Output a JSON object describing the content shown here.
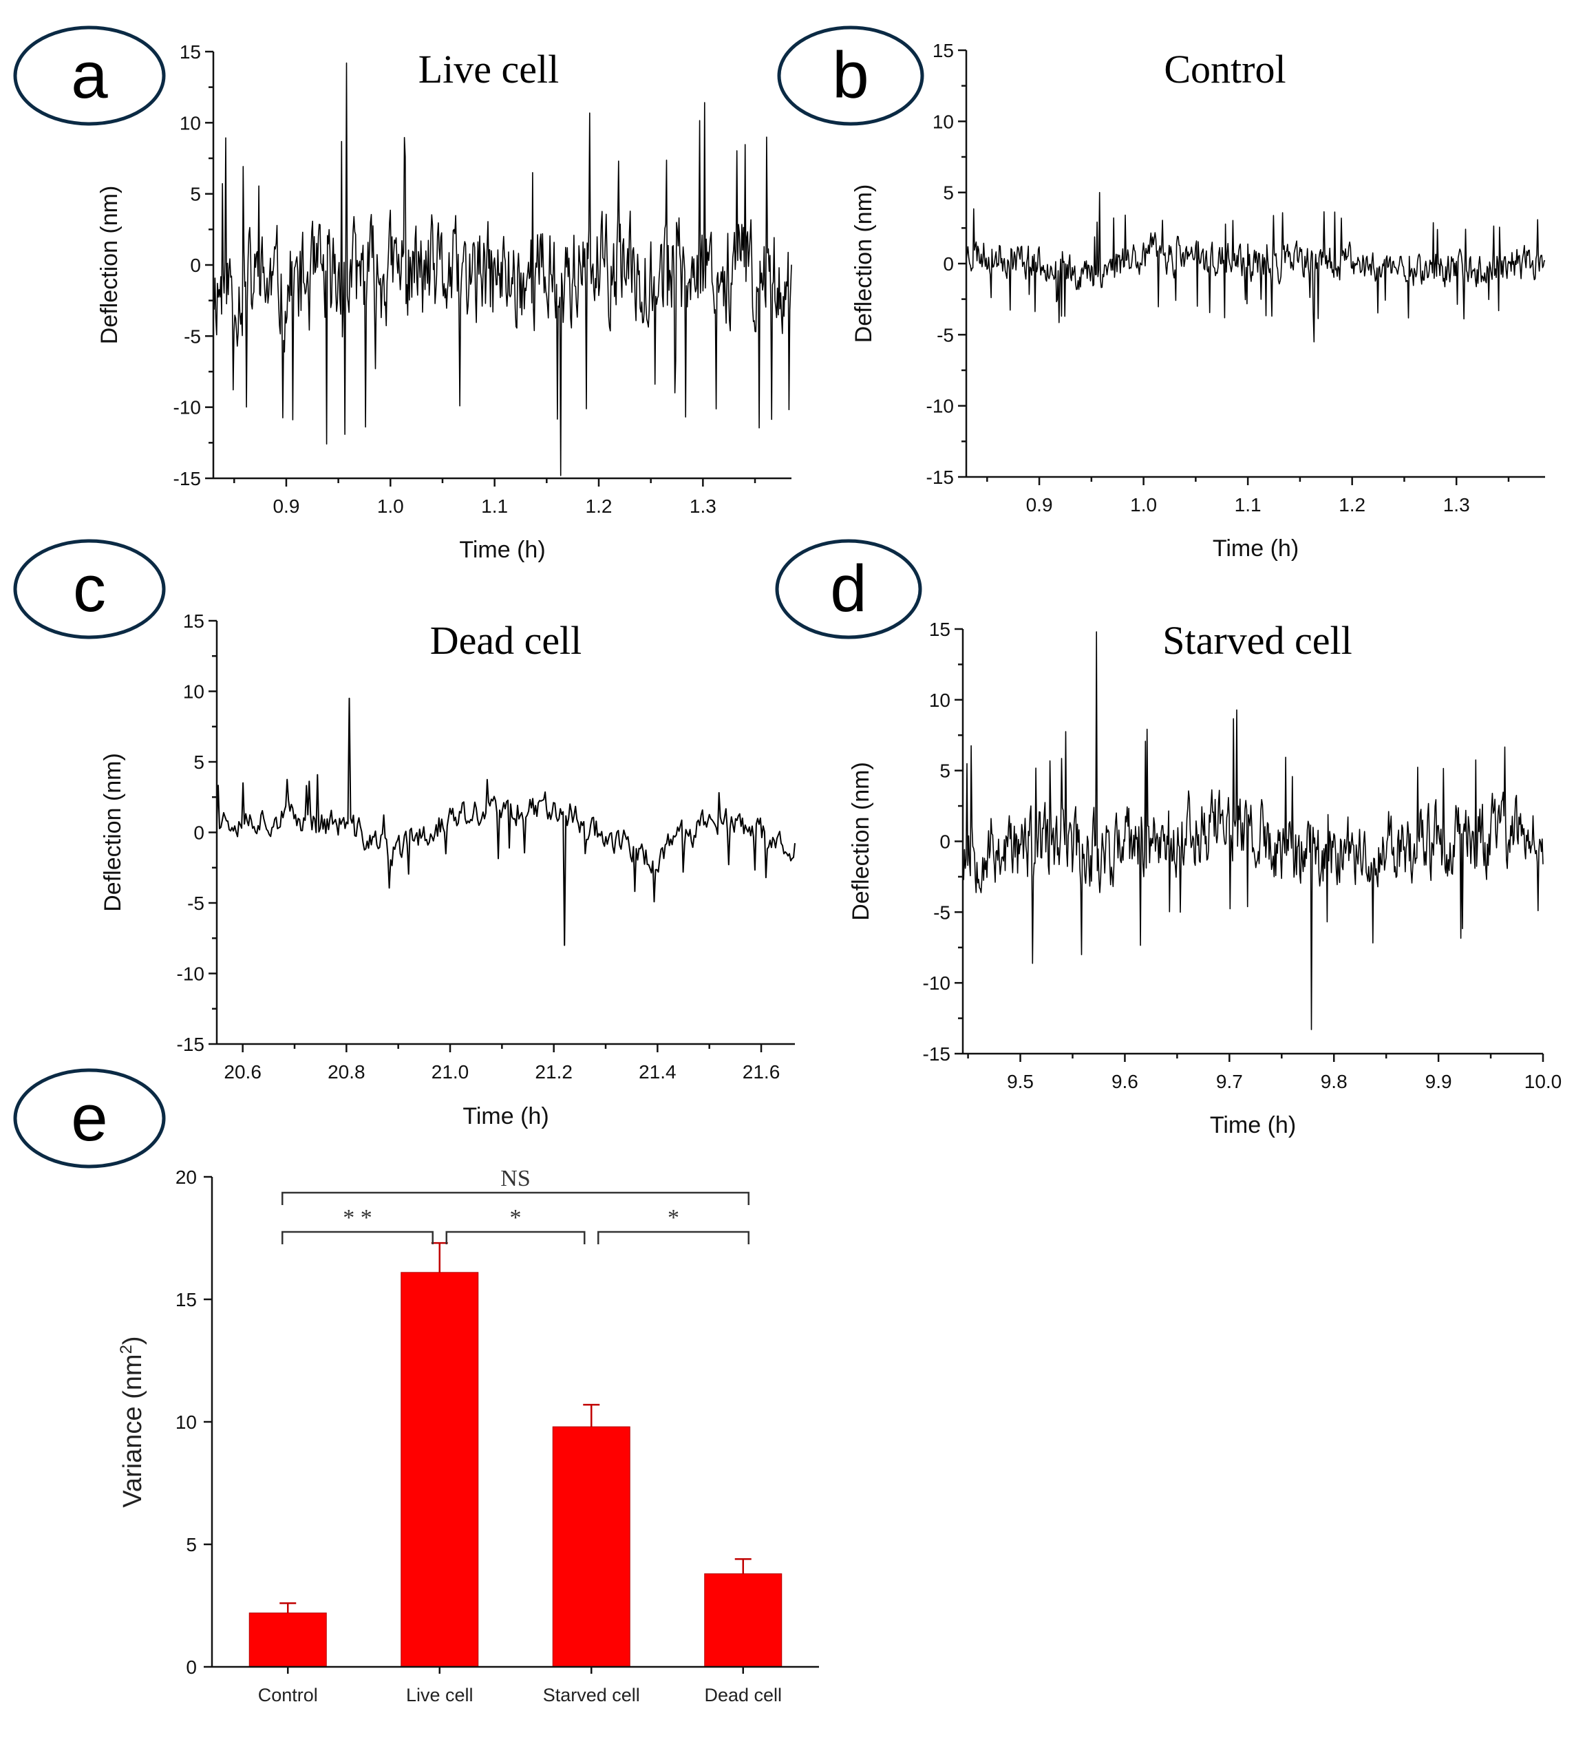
{
  "figure": {
    "colors": {
      "trace": "#000000",
      "bar": "#ff0000",
      "axis": "#111111",
      "panel_ring": "#0b2a44"
    }
  },
  "chart_data": [
    {
      "id": "a",
      "panel_label": "a",
      "type": "line",
      "title": "Live cell",
      "xlabel": "Time (h)",
      "ylabel": "Deflection (nm)",
      "xlim": [
        0.83,
        1.385
      ],
      "ylim": [
        -15,
        15
      ],
      "xticks": [
        0.9,
        1.0,
        1.1,
        1.2,
        1.3
      ],
      "xtick_labels": [
        "0.9",
        "1.0",
        "1.1",
        "1.2",
        "1.3"
      ],
      "yticks": [
        -15,
        -10,
        -5,
        0,
        5,
        10,
        15
      ],
      "ytick_labels": [
        "-15",
        "-10",
        "-5",
        "0",
        "5",
        "10",
        "15"
      ],
      "series": [
        {
          "name": "Live cell deflection",
          "baseline": [
            [
              0.83,
              -1.5
            ],
            [
              0.9,
              -1.5
            ],
            [
              1.0,
              -0.5
            ],
            [
              1.1,
              -1.0
            ],
            [
              1.2,
              -0.5
            ],
            [
              1.3,
              0.0
            ],
            [
              1.385,
              -1.0
            ]
          ],
          "band_halfwidth": 5.5,
          "spike_max": 14.2,
          "spike_min": -14.8,
          "n_points": 700
        }
      ]
    },
    {
      "id": "b",
      "panel_label": "b",
      "type": "line",
      "title": "Control",
      "xlabel": "Time (h)",
      "ylabel": "Deflection (nm)",
      "xlim": [
        0.83,
        1.385
      ],
      "ylim": [
        -15,
        15
      ],
      "xticks": [
        0.9,
        1.0,
        1.1,
        1.2,
        1.3
      ],
      "xtick_labels": [
        "0.9",
        "1.0",
        "1.1",
        "1.2",
        "1.3"
      ],
      "yticks": [
        -15,
        -10,
        -5,
        0,
        5,
        10,
        15
      ],
      "ytick_labels": [
        "-15",
        "-10",
        "-5",
        "0",
        "5",
        "10",
        "15"
      ],
      "series": [
        {
          "name": "Control deflection",
          "baseline": [
            [
              0.83,
              0.8
            ],
            [
              0.9,
              0.2
            ],
            [
              0.95,
              -0.8
            ],
            [
              1.0,
              0.8
            ],
            [
              1.1,
              0.0
            ],
            [
              1.2,
              0.0
            ],
            [
              1.3,
              -0.5
            ],
            [
              1.385,
              0.3
            ]
          ],
          "band_halfwidth": 1.9,
          "spike_max": 5.0,
          "spike_min": -5.5,
          "n_points": 700
        }
      ]
    },
    {
      "id": "c",
      "panel_label": "c",
      "type": "line",
      "title": "Dead cell",
      "xlabel": "Time (h)",
      "ylabel": "Deflection (nm)",
      "xlim": [
        20.55,
        21.665
      ],
      "ylim": [
        -15,
        15
      ],
      "xticks": [
        20.6,
        20.8,
        21.0,
        21.2,
        21.4,
        21.6
      ],
      "xtick_labels": [
        "20.6",
        "20.8",
        "21.0",
        "21.2",
        "21.4",
        "21.6"
      ],
      "yticks": [
        -15,
        -10,
        -5,
        0,
        5,
        10,
        15
      ],
      "ytick_labels": [
        "-15",
        "-10",
        "-5",
        "0",
        "5",
        "10",
        "15"
      ],
      "series": [
        {
          "name": "Dead cell deflection",
          "baseline": [
            [
              20.55,
              1.0
            ],
            [
              20.68,
              1.0
            ],
            [
              20.8,
              0.5
            ],
            [
              20.89,
              -1.5
            ],
            [
              21.0,
              1.0
            ],
            [
              21.2,
              2.0
            ],
            [
              21.39,
              -2.0
            ],
            [
              21.5,
              1.0
            ],
            [
              21.665,
              -1.0
            ]
          ],
          "band_halfwidth": 1.6,
          "spike_max": 9.5,
          "spike_min": -8.0,
          "n_points": 420
        }
      ]
    },
    {
      "id": "d",
      "panel_label": "d",
      "type": "line",
      "title": "Starved cell",
      "xlabel": "Time (h)",
      "ylabel": "Deflection (nm)",
      "xlim": [
        9.445,
        10.0
      ],
      "ylim": [
        -15,
        15
      ],
      "xticks": [
        9.5,
        9.6,
        9.7,
        9.8,
        9.9,
        10.0
      ],
      "xtick_labels": [
        "9.5",
        "9.6",
        "9.7",
        "9.8",
        "9.9",
        "10.0"
      ],
      "yticks": [
        -15,
        -10,
        -5,
        0,
        5,
        10,
        15
      ],
      "ytick_labels": [
        "-15",
        "-10",
        "-5",
        "0",
        "5",
        "10",
        "15"
      ],
      "series": [
        {
          "name": "Starved cell deflection",
          "baseline": [
            [
              9.445,
              -0.5
            ],
            [
              9.6,
              -0.5
            ],
            [
              9.7,
              1.5
            ],
            [
              9.75,
              -1.0
            ],
            [
              9.9,
              0.0
            ],
            [
              10.0,
              0.5
            ]
          ],
          "band_halfwidth": 4.0,
          "spike_max": 14.8,
          "spike_min": -13.3,
          "n_points": 700
        }
      ]
    },
    {
      "id": "e",
      "panel_label": "e",
      "type": "bar",
      "title": "",
      "xlabel": "",
      "ylabel": "Variance (nm",
      "ylabel_superscript": "2",
      "ylabel_close": ")",
      "ylim": [
        0,
        20
      ],
      "yticks": [
        0,
        5,
        10,
        15,
        20
      ],
      "ytick_labels": [
        "0",
        "5",
        "10",
        "15",
        "20"
      ],
      "categories": [
        "Control",
        "Live cell",
        "Starved cell",
        "Dead cell"
      ],
      "values": [
        2.2,
        16.1,
        9.8,
        3.8
      ],
      "errors": [
        0.4,
        1.2,
        0.9,
        0.6
      ],
      "significance": [
        {
          "from": 0,
          "to": 3,
          "label": "NS",
          "level": 2
        },
        {
          "from": 0,
          "to": 1,
          "label": "* *",
          "level": 1
        },
        {
          "from": 1,
          "to": 2,
          "label": "*",
          "level": 1
        },
        {
          "from": 2,
          "to": 3,
          "label": "*",
          "level": 1
        }
      ]
    }
  ]
}
